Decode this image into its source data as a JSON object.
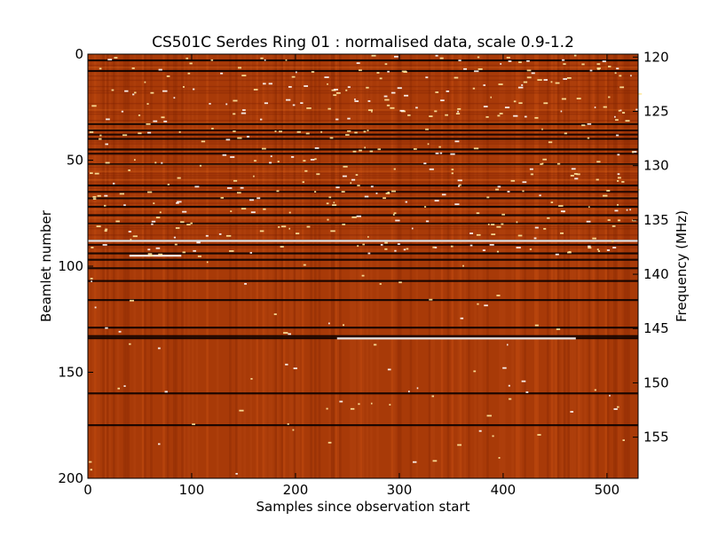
{
  "chart_data": {
    "type": "heatmap",
    "title": "CS501C Serdes Ring 01 : normalised data, scale 0.9-1.2",
    "xlabel": "Samples since observation start",
    "ylabel": "Beamlet number",
    "ylabel_right": "Frequency (MHz)",
    "xlim": [
      0,
      530
    ],
    "ylim": [
      200,
      0
    ],
    "y_right_lim": [
      119.73,
      158.79
    ],
    "x_ticks": [
      "0",
      "100",
      "200",
      "300",
      "400",
      "500"
    ],
    "y_ticks": [
      "0",
      "50",
      "100",
      "150",
      "200"
    ],
    "y_right_ticks": [
      "120",
      "125",
      "130",
      "135",
      "140",
      "145",
      "150",
      "155"
    ],
    "color_scale": {
      "min": 0.9,
      "max": 1.2,
      "colormap": "black-red-orange-yellow-white"
    },
    "colors": {
      "background": "#a83a08",
      "dark_line": "#0a0000",
      "bright_spot": "#ffe9a0",
      "saturated": "#ffffff"
    },
    "dark_beamlet_rows": [
      3,
      8,
      33,
      36,
      38,
      40,
      45,
      47,
      52,
      62,
      65,
      68,
      72,
      76,
      80,
      88,
      90,
      94,
      97,
      101,
      107,
      116,
      129,
      133,
      134,
      160,
      175
    ],
    "bright_beamlet_bands": [
      {
        "beamlet": 88,
        "x": [
          0,
          530
        ]
      },
      {
        "beamlet": 95,
        "x": [
          40,
          90
        ]
      },
      {
        "beamlet": 134,
        "x": [
          240,
          470
        ]
      }
    ],
    "noisy_beamlet_range": [
      0,
      95
    ]
  }
}
